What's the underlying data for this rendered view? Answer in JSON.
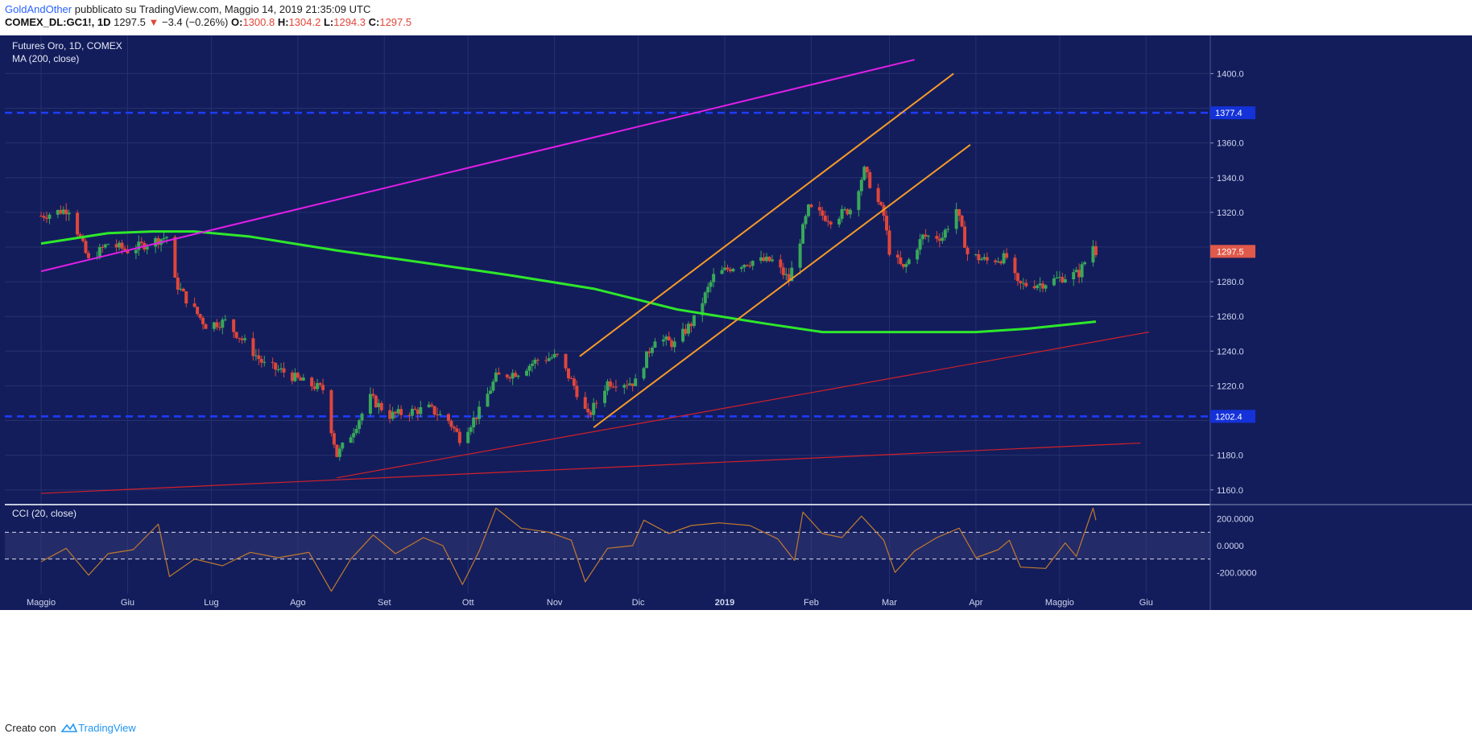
{
  "header": {
    "author": "GoldAndOther",
    "published_text": "pubblicato su TradingView.com, Maggio 14, 2019 21:35:09 UTC",
    "symbol": "COMEX_DL:GC1!, 1D",
    "last": "1297.5",
    "change": "−3.4 (−0.26%)",
    "open_label": "O:",
    "open": "1300.8",
    "high_label": "H:",
    "high": "1304.2",
    "low_label": "L:",
    "low": "1294.3",
    "close_label": "C:",
    "close": "1297.5"
  },
  "legend": {
    "title": "Futures Oro, 1D, COMEX",
    "ma_label": "MA (200, close)",
    "cci_label": "CCI (20, close)"
  },
  "footer": {
    "created_with": "Creato con",
    "brand": "TradingView"
  },
  "colors": {
    "panel_bg": "#131d5c",
    "up": "#38a85a",
    "down": "#e0463a",
    "ma": "#2ee82a",
    "magenta": "#e21ee6",
    "orange": "#f79a26",
    "red_line": "#d2202a",
    "hline": "#1f3cff",
    "cci": "#c07a2e",
    "price_tag": "#e0594a"
  },
  "chart_data": {
    "type": "candlestick",
    "title": "Futures Oro, 1D, COMEX",
    "x_labels": [
      "Maggio",
      "Giu",
      "Lug",
      "Ago",
      "Set",
      "Ott",
      "Nov",
      "Dic",
      "2019",
      "Feb",
      "Mar",
      "Apr",
      "Maggio",
      "Giu"
    ],
    "x_tick_dates": [
      "2018-05-01",
      "2018-06-01",
      "2018-07-01",
      "2018-08-01",
      "2018-09-01",
      "2018-10-01",
      "2018-11-01",
      "2018-12-01",
      "2019-01-01",
      "2019-02-01",
      "2019-03-01",
      "2019-04-01",
      "2019-05-01",
      "2019-06-01"
    ],
    "y_ticks": [
      1160,
      1180,
      1200,
      1220,
      1240,
      1260,
      1280,
      1300,
      1320,
      1340,
      1360,
      1380,
      1400
    ],
    "y_tick_labels": [
      "1160.0",
      "1180.0",
      "",
      "1220.0",
      "1240.0",
      "1260.0",
      "1280.0",
      "",
      "1320.0",
      "1340.0",
      "1360.0",
      "",
      "1400.0"
    ],
    "ylim": [
      1152,
      1422
    ],
    "price_path": [
      [
        "2018-05-01",
        1318
      ],
      [
        "2018-05-11",
        1322
      ],
      [
        "2018-05-18",
        1292
      ],
      [
        "2018-05-25",
        1302
      ],
      [
        "2018-06-01",
        1298
      ],
      [
        "2018-06-08",
        1302
      ],
      [
        "2018-06-15",
        1306
      ],
      [
        "2018-06-18",
        1280
      ],
      [
        "2018-06-22",
        1270
      ],
      [
        "2018-06-29",
        1255
      ],
      [
        "2018-07-06",
        1257
      ],
      [
        "2018-07-13",
        1245
      ],
      [
        "2018-07-20",
        1232
      ],
      [
        "2018-07-27",
        1228
      ],
      [
        "2018-08-03",
        1222
      ],
      [
        "2018-08-10",
        1218
      ],
      [
        "2018-08-15",
        1180
      ],
      [
        "2018-08-20",
        1192
      ],
      [
        "2018-08-27",
        1213
      ],
      [
        "2018-09-03",
        1203
      ],
      [
        "2018-09-10",
        1205
      ],
      [
        "2018-09-17",
        1207
      ],
      [
        "2018-09-24",
        1200
      ],
      [
        "2018-09-28",
        1190
      ],
      [
        "2018-10-05",
        1205
      ],
      [
        "2018-10-11",
        1225
      ],
      [
        "2018-10-19",
        1228
      ],
      [
        "2018-10-26",
        1235
      ],
      [
        "2018-11-02",
        1237
      ],
      [
        "2018-11-08",
        1220
      ],
      [
        "2018-11-13",
        1202
      ],
      [
        "2018-11-20",
        1222
      ],
      [
        "2018-11-30",
        1222
      ],
      [
        "2018-12-07",
        1248
      ],
      [
        "2018-12-14",
        1244
      ],
      [
        "2018-12-21",
        1258
      ],
      [
        "2018-12-28",
        1283
      ],
      [
        "2019-01-04",
        1289
      ],
      [
        "2019-01-11",
        1292
      ],
      [
        "2019-01-18",
        1292
      ],
      [
        "2019-01-24",
        1281
      ],
      [
        "2019-01-31",
        1322
      ],
      [
        "2019-02-08",
        1316
      ],
      [
        "2019-02-15",
        1322
      ],
      [
        "2019-02-20",
        1344
      ],
      [
        "2019-02-27",
        1318
      ],
      [
        "2019-03-01",
        1298
      ],
      [
        "2019-03-06",
        1287
      ],
      [
        "2019-03-13",
        1306
      ],
      [
        "2019-03-20",
        1306
      ],
      [
        "2019-03-25",
        1322
      ],
      [
        "2019-03-29",
        1296
      ],
      [
        "2019-04-05",
        1292
      ],
      [
        "2019-04-12",
        1294
      ],
      [
        "2019-04-16",
        1278
      ],
      [
        "2019-04-25",
        1279
      ],
      [
        "2019-05-01",
        1282
      ],
      [
        "2019-05-08",
        1285
      ],
      [
        "2019-05-13",
        1301
      ],
      [
        "2019-05-14",
        1297.5
      ]
    ],
    "ma_200": [
      [
        "2018-05-01",
        1302
      ],
      [
        "2018-05-25",
        1308
      ],
      [
        "2018-06-10",
        1309
      ],
      [
        "2018-06-25",
        1309
      ],
      [
        "2018-07-15",
        1306
      ],
      [
        "2018-08-15",
        1298
      ],
      [
        "2018-09-15",
        1291
      ],
      [
        "2018-10-15",
        1284
      ],
      [
        "2018-11-15",
        1276
      ],
      [
        "2018-12-15",
        1264
      ],
      [
        "2019-01-15",
        1256
      ],
      [
        "2019-02-05",
        1251
      ],
      [
        "2019-03-01",
        1251
      ],
      [
        "2019-04-01",
        1251
      ],
      [
        "2019-04-20",
        1253
      ],
      [
        "2019-05-14",
        1257
      ]
    ],
    "horizontal_levels": [
      {
        "value": 1377.4,
        "label": "1377.4"
      },
      {
        "value": 1202.4,
        "label": "1202.4"
      }
    ],
    "last_price_label": "1297.5",
    "trendlines": [
      {
        "style": "magenta",
        "points": [
          [
            "2018-05-01",
            1286
          ],
          [
            "2019-03-10",
            1408
          ]
        ]
      },
      {
        "style": "orange",
        "points": [
          [
            "2018-11-10",
            1237
          ],
          [
            "2019-03-24",
            1400
          ]
        ]
      },
      {
        "style": "orange",
        "points": [
          [
            "2018-11-15",
            1196
          ],
          [
            "2019-03-30",
            1359
          ]
        ]
      },
      {
        "style": "red",
        "points": [
          [
            "2018-08-15",
            1167
          ],
          [
            "2019-06-02",
            1251
          ]
        ]
      },
      {
        "style": "red",
        "points": [
          [
            "2018-05-01",
            1158
          ],
          [
            "2019-05-30",
            1187
          ]
        ]
      }
    ],
    "cci": {
      "label": "CCI (20, close)",
      "y_ticks": [
        200,
        0,
        -200
      ],
      "y_tick_labels": [
        "200.0000",
        "0.0000",
        "-200.0000"
      ],
      "bands": [
        100,
        -100
      ],
      "ylim": [
        -360,
        300
      ],
      "values": [
        [
          "2018-05-01",
          -120
        ],
        [
          "2018-05-10",
          -20
        ],
        [
          "2018-05-18",
          -220
        ],
        [
          "2018-05-25",
          -60
        ],
        [
          "2018-06-03",
          -30
        ],
        [
          "2018-06-12",
          160
        ],
        [
          "2018-06-16",
          -230
        ],
        [
          "2018-06-25",
          -100
        ],
        [
          "2018-07-05",
          -150
        ],
        [
          "2018-07-15",
          -50
        ],
        [
          "2018-07-25",
          -90
        ],
        [
          "2018-08-05",
          -50
        ],
        [
          "2018-08-13",
          -340
        ],
        [
          "2018-08-20",
          -100
        ],
        [
          "2018-08-28",
          80
        ],
        [
          "2018-09-05",
          -60
        ],
        [
          "2018-09-15",
          60
        ],
        [
          "2018-09-22",
          0
        ],
        [
          "2018-09-29",
          -290
        ],
        [
          "2018-10-05",
          -40
        ],
        [
          "2018-10-11",
          280
        ],
        [
          "2018-10-20",
          130
        ],
        [
          "2018-10-30",
          100
        ],
        [
          "2018-11-07",
          40
        ],
        [
          "2018-11-12",
          -270
        ],
        [
          "2018-11-20",
          -20
        ],
        [
          "2018-11-29",
          0
        ],
        [
          "2018-12-03",
          190
        ],
        [
          "2018-12-12",
          90
        ],
        [
          "2018-12-20",
          150
        ],
        [
          "2018-12-30",
          170
        ],
        [
          "2019-01-10",
          150
        ],
        [
          "2019-01-20",
          50
        ],
        [
          "2019-01-26",
          -110
        ],
        [
          "2019-01-29",
          250
        ],
        [
          "2019-02-05",
          90
        ],
        [
          "2019-02-12",
          60
        ],
        [
          "2019-02-19",
          220
        ],
        [
          "2019-02-27",
          40
        ],
        [
          "2019-03-03",
          -200
        ],
        [
          "2019-03-10",
          -40
        ],
        [
          "2019-03-18",
          60
        ],
        [
          "2019-03-26",
          130
        ],
        [
          "2019-04-01",
          -90
        ],
        [
          "2019-04-09",
          -30
        ],
        [
          "2019-04-13",
          40
        ],
        [
          "2019-04-17",
          -160
        ],
        [
          "2019-04-26",
          -170
        ],
        [
          "2019-05-03",
          20
        ],
        [
          "2019-05-07",
          -80
        ],
        [
          "2019-05-13",
          280
        ],
        [
          "2019-05-14",
          190
        ]
      ]
    }
  }
}
